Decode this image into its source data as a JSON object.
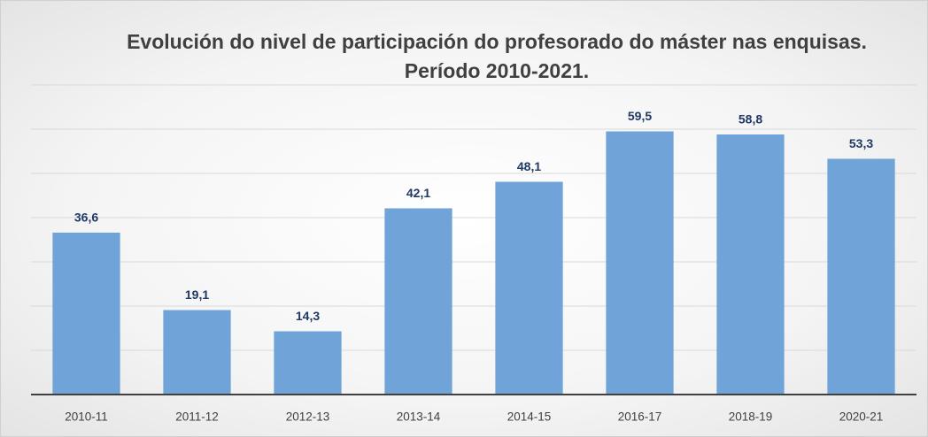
{
  "chart_data": {
    "type": "bar",
    "title": "Evolución do nivel de participación do profesorado do máster nas enquisas. Período 2010-2021.",
    "categories": [
      "2010-11",
      "2011-12",
      "2012-13",
      "2013-14",
      "2014-15",
      "2016-17",
      "2018-19",
      "2020-21"
    ],
    "values": [
      36.6,
      19.1,
      14.3,
      42.1,
      48.1,
      59.5,
      58.8,
      53.3
    ],
    "value_labels": [
      "36,6",
      "19,1",
      "14,3",
      "42,1",
      "48,1",
      "59,5",
      "58,8",
      "53,3"
    ],
    "color": "#70a3d8",
    "ylim": [
      0,
      70
    ],
    "yticks": [
      0,
      10,
      20,
      30,
      40,
      50,
      60,
      70
    ],
    "grid": true
  }
}
